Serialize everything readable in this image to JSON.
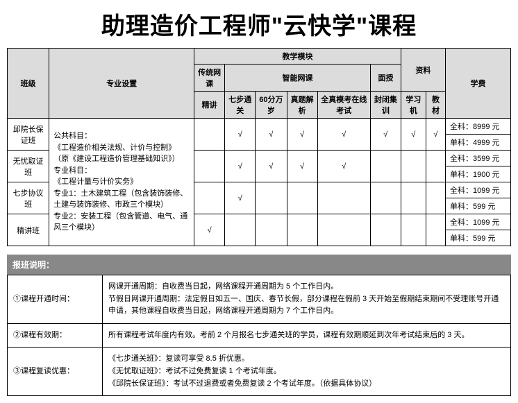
{
  "title": "助理造价工程师\"云快学\"课程",
  "headers": {
    "class": "班级",
    "subject": "专业设置",
    "modules": "教学模块",
    "traditional": "传统网课",
    "smart": "智能网课",
    "inperson": "面授",
    "materials": "资料",
    "fee": "学费",
    "jingjiang": "精讲",
    "qibu": "七步通关",
    "sixty": "60分万岁",
    "zhenti": "真题解析",
    "quanzhen": "全真模考在线考试",
    "fengbi": "封闭集训",
    "xueji": "学习机",
    "jiaocai": "教材"
  },
  "classes": {
    "c1": "邱院长保证班",
    "c2": "无忧取证班",
    "c3": "七步协议班",
    "c4": "精讲班"
  },
  "subject_text": "公共科目：\n《工程造价相关法规、计价与控制》\n（原《建设工程造价管理基础知识》）\n专业科目：\n《工程计量与计价实务》\n专业1：土木建筑工程（包含装饰装修、土建与装饰装修、市政三个模块）\n专业2：安装工程（包含管道、电气、通风三个模块）",
  "check": "√",
  "prices": {
    "c1_all": "全科：8999 元",
    "c1_single": "单科：4999 元",
    "c2_all": "全科：3599 元",
    "c2_single": "单科：1900 元",
    "c3_all": "全科：1099 元",
    "c3_single": "单科：599 元",
    "c4_all": "全科：1099 元",
    "c4_single": "单科：599 元"
  },
  "notes_title": "报班说明：",
  "notes": {
    "r1_label": "①课程开通时间：",
    "r1_text": "网课开通周期：自收费当日起，网络课程开通周期为 5 个工作日内。\n节假日网课开通周期：法定假日如五一、国庆、春节长假，部分课程在假前 3 天开始至假期结束期间不受理账号开通申请，其他课程自收费当日起，网络课程开通周期为 7 个工作日内。",
    "r2_label": "②课程有效期：",
    "r2_text": "所有课程考试年度内有效。考前 2 个月报名七步通关班的学员，课程有效期顺延到次年考试结束后的 3 天。",
    "r3_label": "③课程复读优惠：",
    "r3_text": "《七步通关班》：复读可享受 8.5 折优惠。\n《无忧取证班》：考试不过免费复读 1 个考试年度。\n《邱院长保证班》：考试不过退费或者免费复读 2 个考试年度。（依据具体协议）"
  }
}
